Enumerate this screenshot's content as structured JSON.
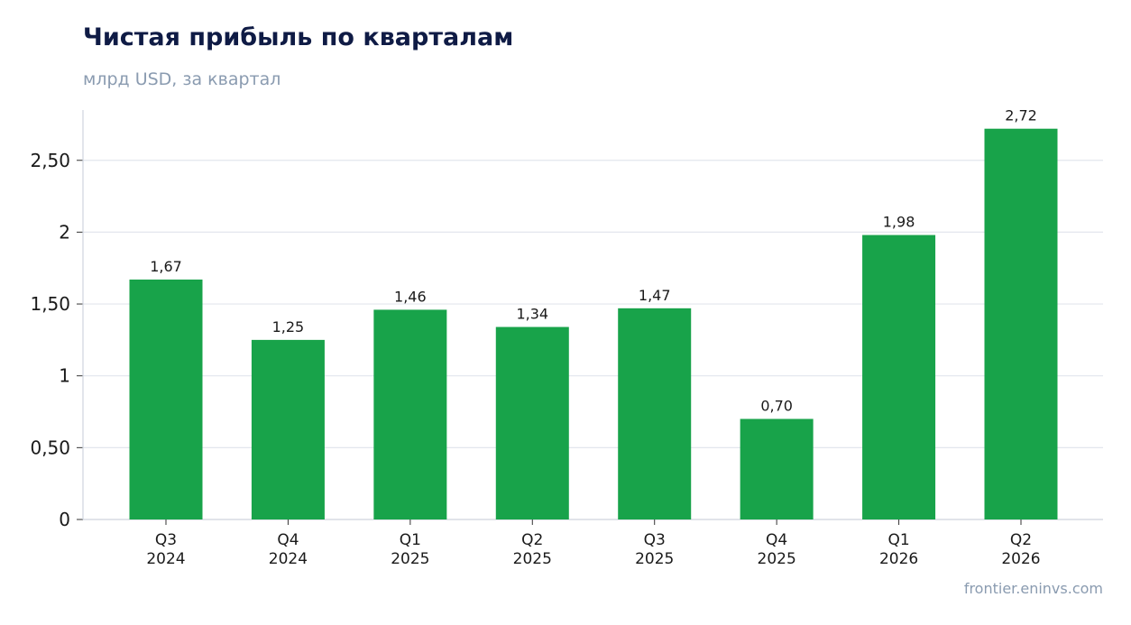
{
  "header": {
    "title": "Чистая прибыль по кварталам",
    "subtitle": "млрд USD, за квартал"
  },
  "footer": {
    "source": "frontier.eninvs.com"
  },
  "colors": {
    "bar": "#18a34a",
    "grid": "#e3e6ee",
    "axis": "#cfd4de"
  },
  "chart_data": {
    "type": "bar",
    "title": "Чистая прибыль по кварталам",
    "subtitle": "млрд USD, за квартал",
    "categories": [
      [
        "Q3",
        "2024"
      ],
      [
        "Q4",
        "2024"
      ],
      [
        "Q1",
        "2025"
      ],
      [
        "Q2",
        "2025"
      ],
      [
        "Q3",
        "2025"
      ],
      [
        "Q4",
        "2025"
      ],
      [
        "Q1",
        "2026"
      ],
      [
        "Q2",
        "2026"
      ]
    ],
    "values": [
      1.67,
      1.25,
      1.46,
      1.34,
      1.47,
      0.7,
      1.98,
      2.72
    ],
    "value_labels": [
      "1,67",
      "1,25",
      "1,46",
      "1,34",
      "1,47",
      "0,70",
      "1,98",
      "2,72"
    ],
    "yticks": [
      0,
      0.5,
      1,
      1.5,
      2,
      2.5
    ],
    "ytick_labels": [
      "0",
      "0,50",
      "1",
      "1,50",
      "2",
      "2,50"
    ],
    "ylim": [
      0,
      2.85
    ],
    "grid": true,
    "legend": "none"
  }
}
